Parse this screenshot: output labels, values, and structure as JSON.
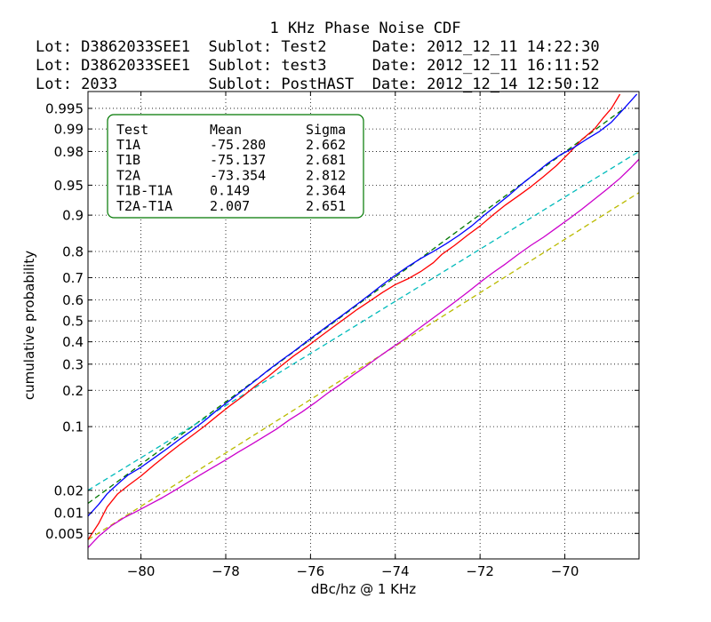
{
  "header": {
    "title": "1 KHz Phase Noise CDF",
    "lines": [
      "Lot: D3862033SEE1  Sublot: Test2     Date: 2012_12_11 14:22:30",
      "Lot: D3862033SEE1  Sublot: test3     Date: 2012_12_11 16:11:52",
      "Lot: 2033          Sublot: PostHAST  Date: 2012_12_14 12:50:12"
    ]
  },
  "chart_data": {
    "type": "line",
    "title": "1 KHz Phase Noise CDF",
    "xlabel": "dBc/hz @ 1 KHz",
    "ylabel": "cumulative probability",
    "y_scale": "normal-probability",
    "xlim": [
      -81.25,
      -68.25
    ],
    "zlim": [
      -2.885,
      2.78
    ],
    "x_ticks": [
      -80,
      -78,
      -76,
      -74,
      -72,
      -70
    ],
    "x_tick_labels": [
      "−80",
      "−78",
      "−76",
      "−74",
      "−72",
      "−70"
    ],
    "y_ticks": [
      0.005,
      0.01,
      0.02,
      0.1,
      0.2,
      0.3,
      0.4,
      0.5,
      0.6,
      0.7,
      0.8,
      0.9,
      0.95,
      0.98,
      0.99,
      0.995
    ],
    "y_tick_labels": [
      "0.005",
      "0.01",
      "0.02",
      "0.1",
      "0.2",
      "0.3",
      "0.4",
      "0.5",
      "0.6",
      "0.7",
      "0.8",
      "0.9",
      "0.95",
      "0.98",
      "0.99",
      "0.995"
    ],
    "grid": true,
    "colors": {
      "T1A": "#ff0000",
      "T1B": "#0000ff",
      "T2A": "#cc00cc",
      "T1A_fit": "#007700",
      "T1B_fit": "#00bbbb",
      "T2A_fit": "#bbbb00"
    },
    "stats_table": {
      "headers": [
        "Test",
        "Mean",
        "Sigma"
      ],
      "rows": [
        [
          "T1A",
          "-75.280",
          "2.662"
        ],
        [
          "T1B",
          "-75.137",
          "2.681"
        ],
        [
          "T2A",
          "-73.354",
          "2.812"
        ],
        [
          "T1B-T1A",
          "0.149",
          "2.364"
        ],
        [
          "T2A-T1A",
          "2.007",
          "2.651"
        ]
      ]
    },
    "fit_lines": [
      {
        "key": "T1A_fit",
        "x": [
          -81.25,
          -68.6
        ],
        "p": [
          0.0135,
          0.995
        ]
      },
      {
        "key": "T1B_fit",
        "x": [
          -81.25,
          -68.25
        ],
        "p": [
          0.02,
          0.98
        ]
      },
      {
        "key": "T2A_fit",
        "x": [
          -81.25,
          -68.25
        ],
        "p": [
          0.004,
          0.94
        ]
      }
    ],
    "series": [
      {
        "key": "T1A",
        "x": [
          -81.25,
          -81.0,
          -80.8,
          -80.55,
          -80.3,
          -80.0,
          -79.7,
          -79.4,
          -79.1,
          -78.8,
          -78.5,
          -78.2,
          -77.9,
          -77.6,
          -77.3,
          -77.0,
          -76.7,
          -76.4,
          -76.1,
          -75.8,
          -75.5,
          -75.2,
          -74.9,
          -74.6,
          -74.3,
          -74.0,
          -73.7,
          -73.4,
          -73.1,
          -72.9,
          -72.6,
          -72.3,
          -72.0,
          -71.7,
          -71.4,
          -71.1,
          -70.8,
          -70.5,
          -70.2,
          -69.9,
          -69.6,
          -69.3,
          -69.1,
          -68.9,
          -68.7
        ],
        "p": [
          0.004,
          0.007,
          0.012,
          0.018,
          0.023,
          0.03,
          0.04,
          0.052,
          0.066,
          0.082,
          0.101,
          0.125,
          0.152,
          0.18,
          0.215,
          0.25,
          0.292,
          0.335,
          0.375,
          0.42,
          0.465,
          0.51,
          0.555,
          0.595,
          0.635,
          0.67,
          0.695,
          0.725,
          0.76,
          0.79,
          0.82,
          0.85,
          0.875,
          0.9,
          0.92,
          0.935,
          0.948,
          0.96,
          0.97,
          0.979,
          0.986,
          0.99,
          0.993,
          0.995,
          0.997
        ]
      },
      {
        "key": "T1B",
        "x": [
          -81.25,
          -81.0,
          -80.8,
          -80.55,
          -80.3,
          -80.0,
          -79.7,
          -79.4,
          -79.1,
          -78.8,
          -78.5,
          -78.2,
          -77.9,
          -77.6,
          -77.3,
          -77.0,
          -76.7,
          -76.4,
          -76.1,
          -75.8,
          -75.5,
          -75.2,
          -74.9,
          -74.6,
          -74.3,
          -74.0,
          -73.7,
          -73.4,
          -73.1,
          -72.8,
          -72.5,
          -72.2,
          -71.9,
          -71.6,
          -71.3,
          -71.0,
          -70.7,
          -70.4,
          -70.1,
          -69.8,
          -69.5,
          -69.2,
          -68.9,
          -68.6,
          -68.3
        ],
        "p": [
          0.009,
          0.013,
          0.018,
          0.024,
          0.031,
          0.038,
          0.048,
          0.06,
          0.075,
          0.092,
          0.113,
          0.14,
          0.168,
          0.2,
          0.235,
          0.275,
          0.315,
          0.355,
          0.4,
          0.445,
          0.49,
          0.535,
          0.58,
          0.625,
          0.67,
          0.71,
          0.745,
          0.775,
          0.8,
          0.825,
          0.85,
          0.875,
          0.9,
          0.92,
          0.937,
          0.952,
          0.963,
          0.972,
          0.978,
          0.982,
          0.986,
          0.989,
          0.992,
          0.995,
          0.997
        ]
      },
      {
        "key": "T2A",
        "x": [
          -81.25,
          -81.0,
          -80.7,
          -80.4,
          -80.1,
          -79.8,
          -79.5,
          -79.2,
          -78.9,
          -78.6,
          -78.3,
          -78.0,
          -77.7,
          -77.4,
          -77.1,
          -76.8,
          -76.5,
          -76.2,
          -75.9,
          -75.6,
          -75.3,
          -75.0,
          -74.7,
          -74.4,
          -74.1,
          -73.8,
          -73.5,
          -73.2,
          -72.9,
          -72.6,
          -72.3,
          -72.0,
          -71.7,
          -71.4,
          -71.1,
          -70.8,
          -70.5,
          -70.2,
          -69.9,
          -69.6,
          -69.3,
          -69.0,
          -68.7,
          -68.45,
          -68.25
        ],
        "p": [
          0.003,
          0.0045,
          0.0065,
          0.0085,
          0.0105,
          0.013,
          0.016,
          0.02,
          0.025,
          0.031,
          0.038,
          0.046,
          0.056,
          0.067,
          0.08,
          0.095,
          0.115,
          0.135,
          0.16,
          0.19,
          0.22,
          0.255,
          0.29,
          0.33,
          0.37,
          0.41,
          0.455,
          0.5,
          0.545,
          0.59,
          0.635,
          0.68,
          0.72,
          0.755,
          0.79,
          0.82,
          0.845,
          0.87,
          0.892,
          0.912,
          0.93,
          0.945,
          0.958,
          0.968,
          0.975
        ]
      }
    ]
  }
}
